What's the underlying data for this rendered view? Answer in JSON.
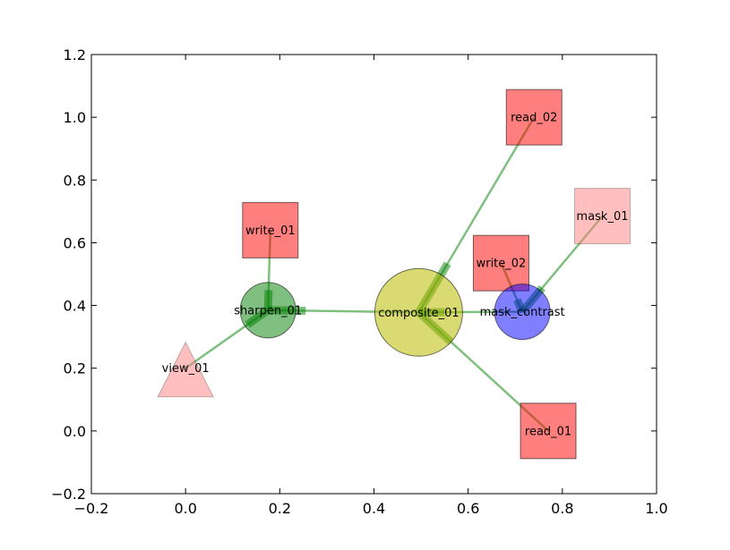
{
  "chart_data": {
    "type": "network-graph",
    "xlim": [
      -0.2,
      1.0
    ],
    "ylim": [
      -0.2,
      1.2
    ],
    "xticks": [
      -0.2,
      0.0,
      0.2,
      0.4,
      0.6,
      0.8,
      1.0
    ],
    "yticks": [
      -0.2,
      0.0,
      0.2,
      0.4,
      0.6,
      0.8,
      1.0,
      1.2
    ],
    "xtick_labels": [
      "−0.2",
      "0.0",
      "0.2",
      "0.4",
      "0.6",
      "0.8",
      "1.0"
    ],
    "ytick_labels": [
      "−0.2",
      "0.0",
      "0.2",
      "0.4",
      "0.6",
      "0.8",
      "1.0",
      "1.2"
    ],
    "grid": false,
    "nodes": [
      {
        "id": "write_01",
        "label": "write_01",
        "x": 0.18,
        "y": 0.64,
        "shape": "square",
        "color": "#ff0000",
        "alpha": 0.5
      },
      {
        "id": "sharpen_01",
        "label": "sharpen_01",
        "x": 0.175,
        "y": 0.385,
        "shape": "circle",
        "color": "#008000",
        "alpha": 0.5
      },
      {
        "id": "view_01",
        "label": "view_01",
        "x": 0.0,
        "y": 0.2,
        "shape": "triangle",
        "color": "#ff8080",
        "alpha": 0.5
      },
      {
        "id": "composite_01",
        "label": "composite_01",
        "x": 0.495,
        "y": 0.378,
        "shape": "circle-large",
        "color": "#bbbb00",
        "alpha": 0.55
      },
      {
        "id": "read_02",
        "label": "read_02",
        "x": 0.74,
        "y": 1.0,
        "shape": "square",
        "color": "#ff0000",
        "alpha": 0.5
      },
      {
        "id": "mask_01",
        "label": "mask_01",
        "x": 0.885,
        "y": 0.685,
        "shape": "square",
        "color": "#ff8080",
        "alpha": 0.5
      },
      {
        "id": "write_02",
        "label": "write_02",
        "x": 0.67,
        "y": 0.535,
        "shape": "square",
        "color": "#ff0000",
        "alpha": 0.5
      },
      {
        "id": "mask_contrast",
        "label": "mask_contrast",
        "x": 0.715,
        "y": 0.38,
        "shape": "circle",
        "color": "#0000ff",
        "alpha": 0.5
      },
      {
        "id": "read_01",
        "label": "read_01",
        "x": 0.77,
        "y": 0.0,
        "shape": "square",
        "color": "#ff0000",
        "alpha": 0.5
      }
    ],
    "edges": [
      {
        "from": "write_01",
        "to": "sharpen_01"
      },
      {
        "from": "view_01",
        "to": "sharpen_01"
      },
      {
        "from": "composite_01",
        "to": "sharpen_01"
      },
      {
        "from": "read_02",
        "to": "composite_01"
      },
      {
        "from": "mask_contrast",
        "to": "composite_01"
      },
      {
        "from": "read_01",
        "to": "composite_01"
      },
      {
        "from": "write_02",
        "to": "mask_contrast"
      },
      {
        "from": "mask_01",
        "to": "mask_contrast"
      }
    ],
    "edge_color": "#008000",
    "edge_alpha": 0.5
  }
}
